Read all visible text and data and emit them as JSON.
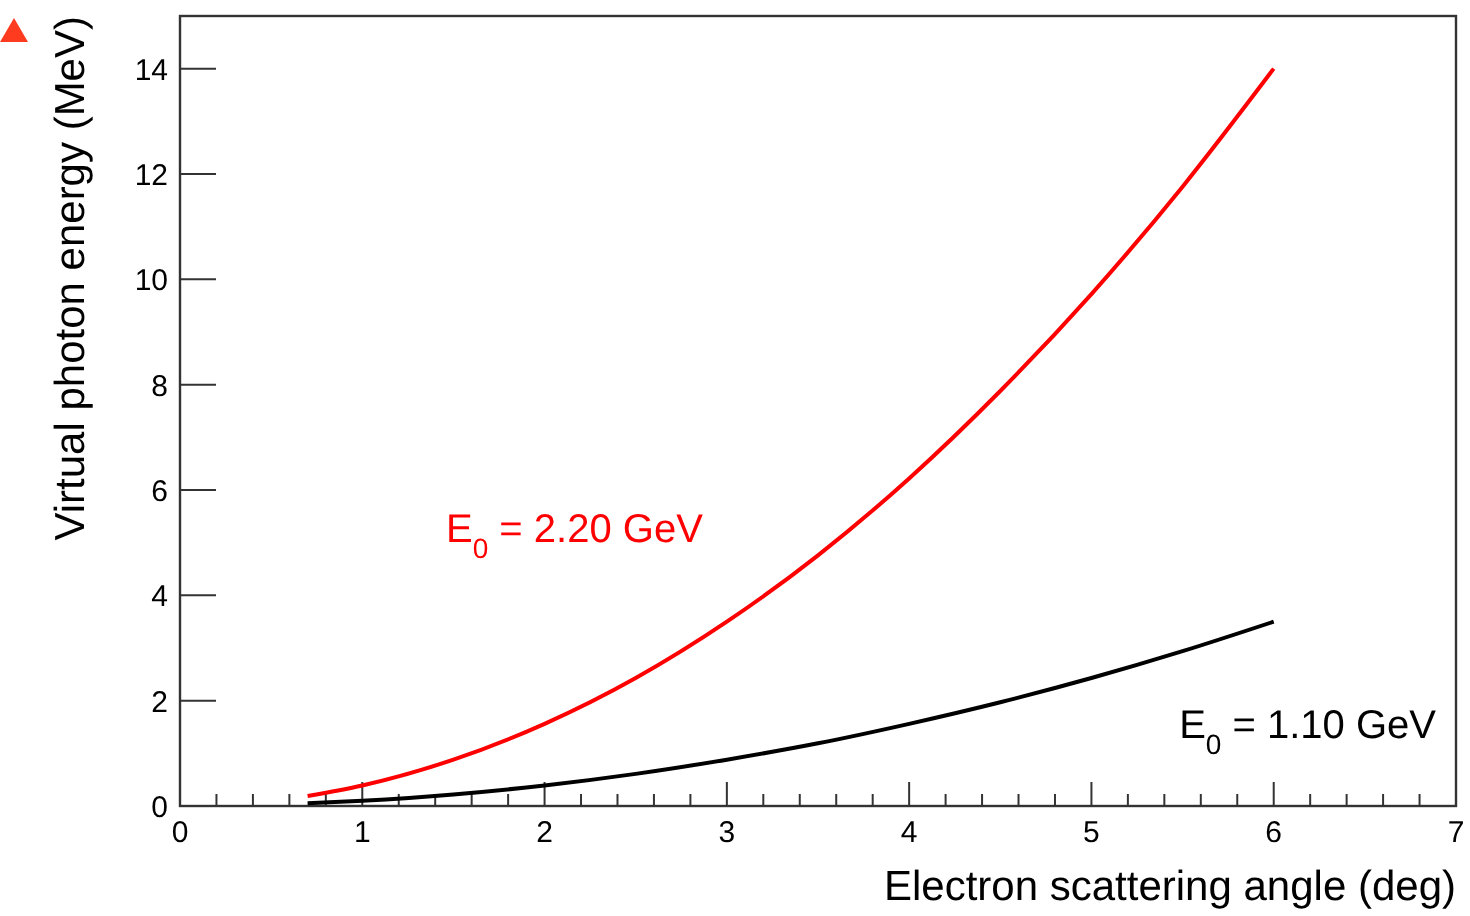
{
  "chart_data": {
    "type": "line",
    "xlabel": "Electron scattering angle (deg)",
    "ylabel": "Virtual photon energy (MeV)",
    "x": [
      0.7,
      1,
      1.5,
      2,
      2.5,
      3,
      3.5,
      4,
      4.5,
      5,
      5.5,
      6
    ],
    "series": [
      {
        "name": "E$_{0}$ = 2.20 GeV",
        "color": "#ff0000",
        "values": [
          0.19,
          0.39,
          0.88,
          1.56,
          2.43,
          3.5,
          4.76,
          6.22,
          7.88,
          9.72,
          11.76,
          14.0
        ]
      },
      {
        "name": "E$_{0}$ = 1.10 GeV",
        "color": "#000000",
        "values": [
          0.05,
          0.1,
          0.22,
          0.39,
          0.61,
          0.88,
          1.19,
          1.56,
          1.97,
          2.43,
          2.94,
          3.5
        ]
      }
    ],
    "xlim": [
      0,
      7
    ],
    "ylim": [
      0,
      15
    ],
    "xticks": [
      0,
      {
        "value": 0.2,
        "label": null
      },
      {
        "value": 0.4,
        "label": null
      },
      {
        "value": 0.6,
        "label": null
      },
      {
        "value": 0.8,
        "label": null
      },
      1,
      {
        "value": 1.2,
        "label": null
      },
      {
        "value": 1.4,
        "label": null
      },
      {
        "value": 1.6,
        "label": null
      },
      {
        "value": 1.8,
        "label": null
      },
      2,
      {
        "value": 2.2,
        "label": null
      },
      {
        "value": 2.4,
        "label": null
      },
      {
        "value": 2.6,
        "label": null
      },
      {
        "value": 2.8,
        "label": null
      },
      3,
      {
        "value": 3.2,
        "label": null
      },
      {
        "value": 3.4,
        "label": null
      },
      {
        "value": 3.6,
        "label": null
      },
      {
        "value": 3.8,
        "label": null
      },
      4,
      {
        "value": 4.2,
        "label": null
      },
      {
        "value": 4.4,
        "label": null
      },
      {
        "value": 4.6,
        "label": null
      },
      {
        "value": 4.8,
        "label": null
      },
      5,
      {
        "value": 5.2,
        "label": null
      },
      {
        "value": 5.4,
        "label": null
      },
      {
        "value": 5.6,
        "label": null
      },
      {
        "value": 5.8,
        "label": null
      },
      6,
      {
        "value": 6.2,
        "label": null
      },
      {
        "value": 6.4,
        "label": null
      },
      {
        "value": 6.6,
        "label": null
      },
      {
        "value": 6.8,
        "label": null
      },
      7
    ],
    "yticks": [
      0,
      2,
      4,
      6,
      8,
      10,
      12,
      14
    ],
    "grid": false,
    "legend": false,
    "marker": "none",
    "line_style": "solid"
  }
}
